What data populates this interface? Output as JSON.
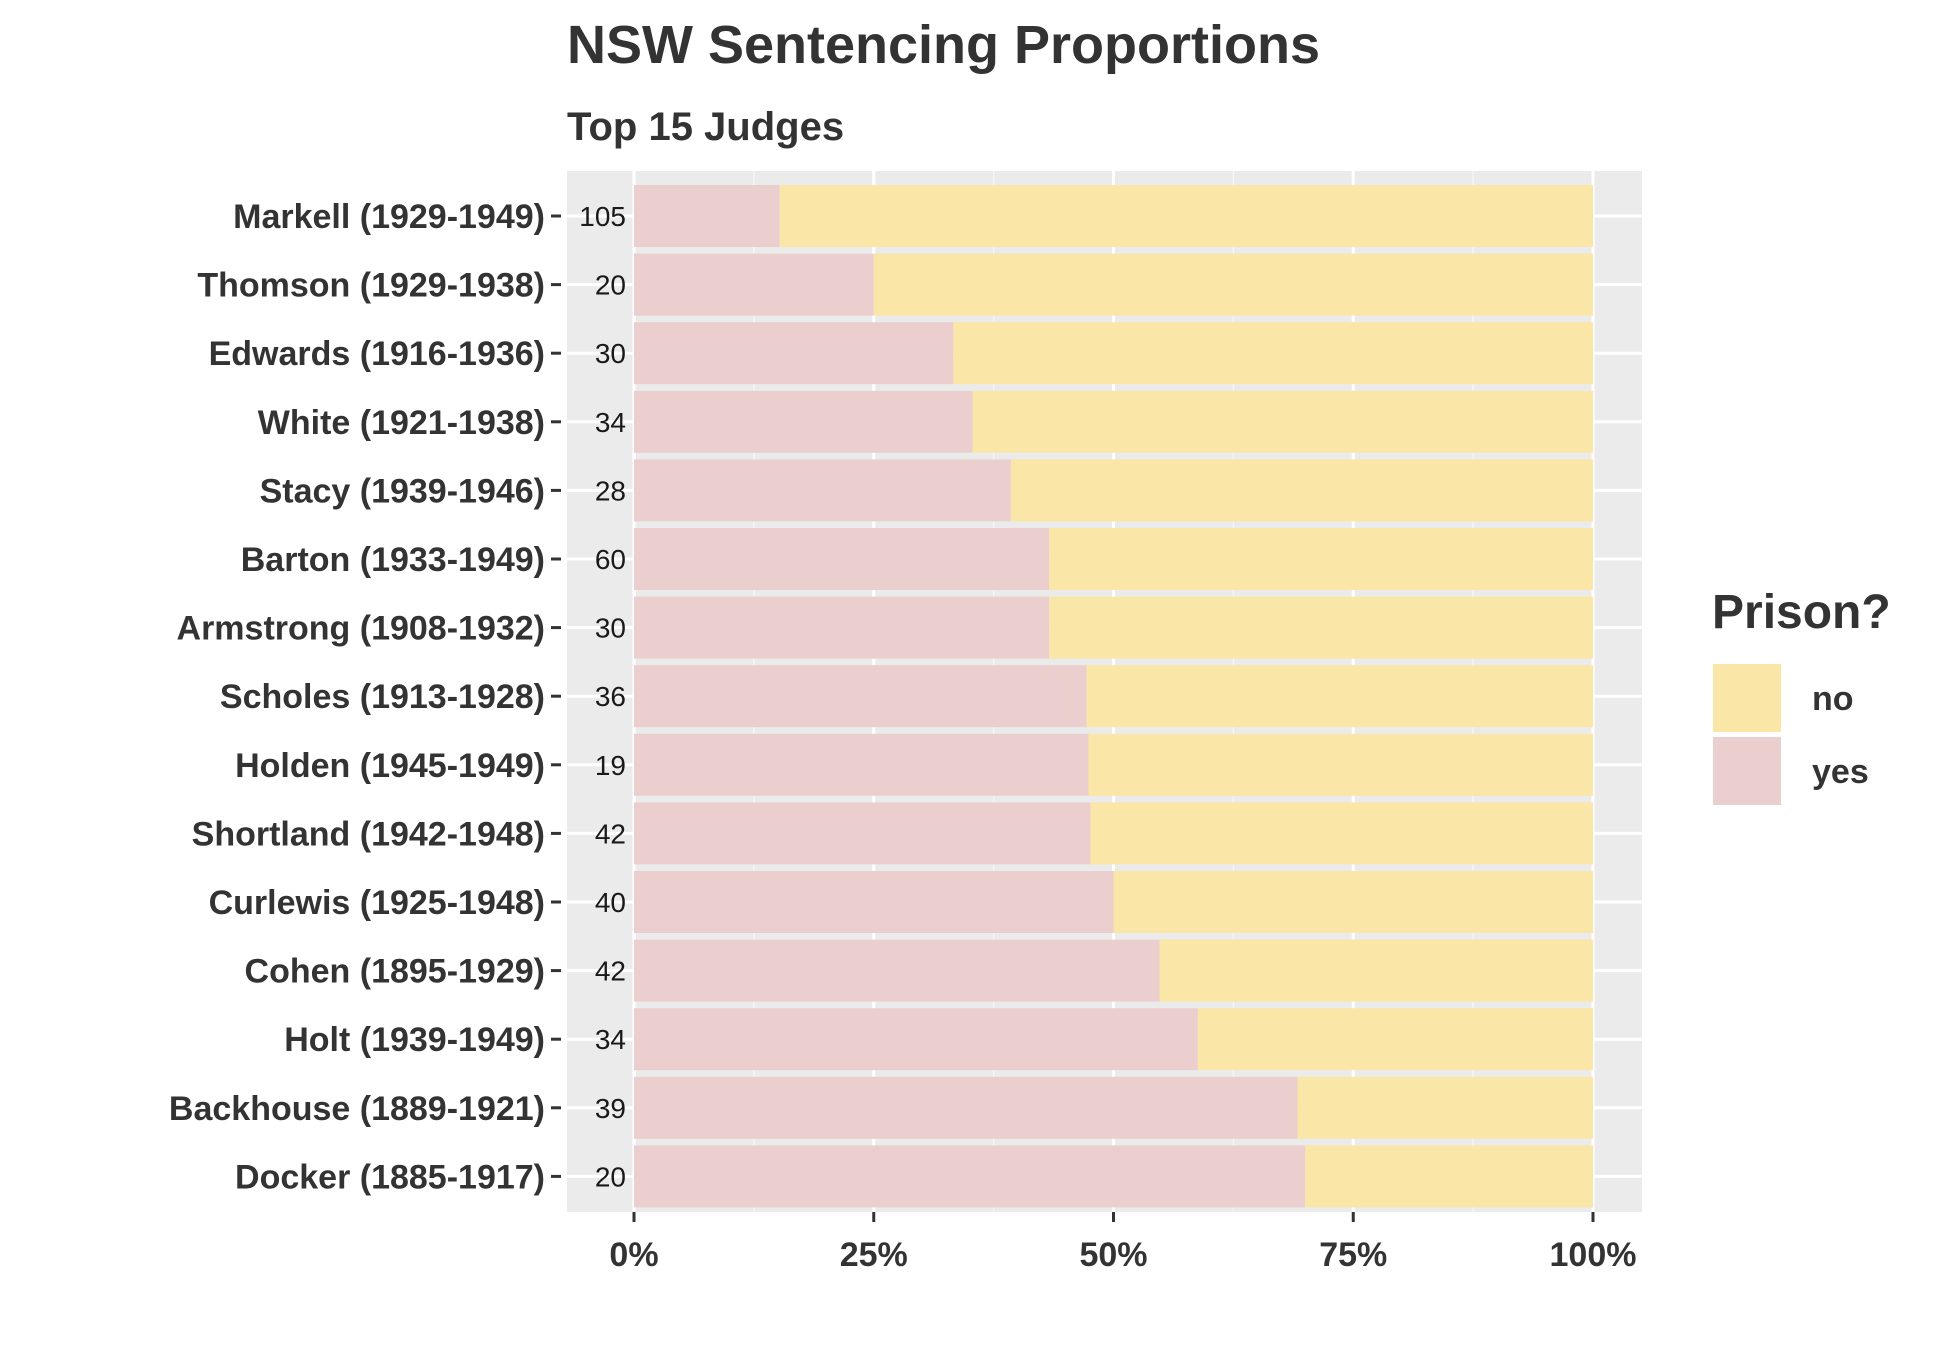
{
  "chart_data": {
    "type": "bar",
    "orientation": "horizontal",
    "stacked": "fill",
    "title": "NSW Sentencing Proportions",
    "subtitle": "Top 15 Judges",
    "legend": {
      "title": "Prison?",
      "position": "right",
      "entries": [
        {
          "label": "no",
          "color": "#fae6a6"
        },
        {
          "label": "yes",
          "color": "#ebcfcf"
        }
      ]
    },
    "categories": [
      "Markell (1929-1949)",
      "Thomson (1929-1938)",
      "Edwards (1916-1936)",
      "White (1921-1938)",
      "Stacy (1939-1946)",
      "Barton (1933-1949)",
      "Armstrong (1908-1932)",
      "Scholes (1913-1928)",
      "Holden (1945-1949)",
      "Shortland (1942-1948)",
      "Curlewis (1925-1948)",
      "Cohen (1895-1929)",
      "Holt (1939-1949)",
      "Backhouse (1889-1921)",
      "Docker (1885-1917)"
    ],
    "counts": [
      "105",
      "20",
      "30",
      "34",
      "28",
      "60",
      "30",
      "36",
      "19",
      "42",
      "40",
      "42",
      "34",
      "39",
      "20"
    ],
    "series": [
      {
        "name": "yes",
        "color": "#ebcfcf",
        "values": [
          0.152,
          0.25,
          0.333,
          0.353,
          0.393,
          0.433,
          0.433,
          0.472,
          0.474,
          0.476,
          0.5,
          0.548,
          0.588,
          0.692,
          0.7
        ]
      },
      {
        "name": "no",
        "color": "#fae6a6",
        "values": [
          0.848,
          0.75,
          0.667,
          0.647,
          0.607,
          0.567,
          0.567,
          0.528,
          0.526,
          0.524,
          0.5,
          0.452,
          0.412,
          0.308,
          0.3
        ]
      }
    ],
    "x_ticks": [
      "0%",
      "25%",
      "50%",
      "75%",
      "100%"
    ],
    "x_tick_values": [
      0,
      0.25,
      0.5,
      0.75,
      1.0
    ],
    "xlim": [
      0,
      1
    ],
    "xlabel": "",
    "ylabel": "",
    "grid": true,
    "panel_background": "#ebebeb"
  }
}
